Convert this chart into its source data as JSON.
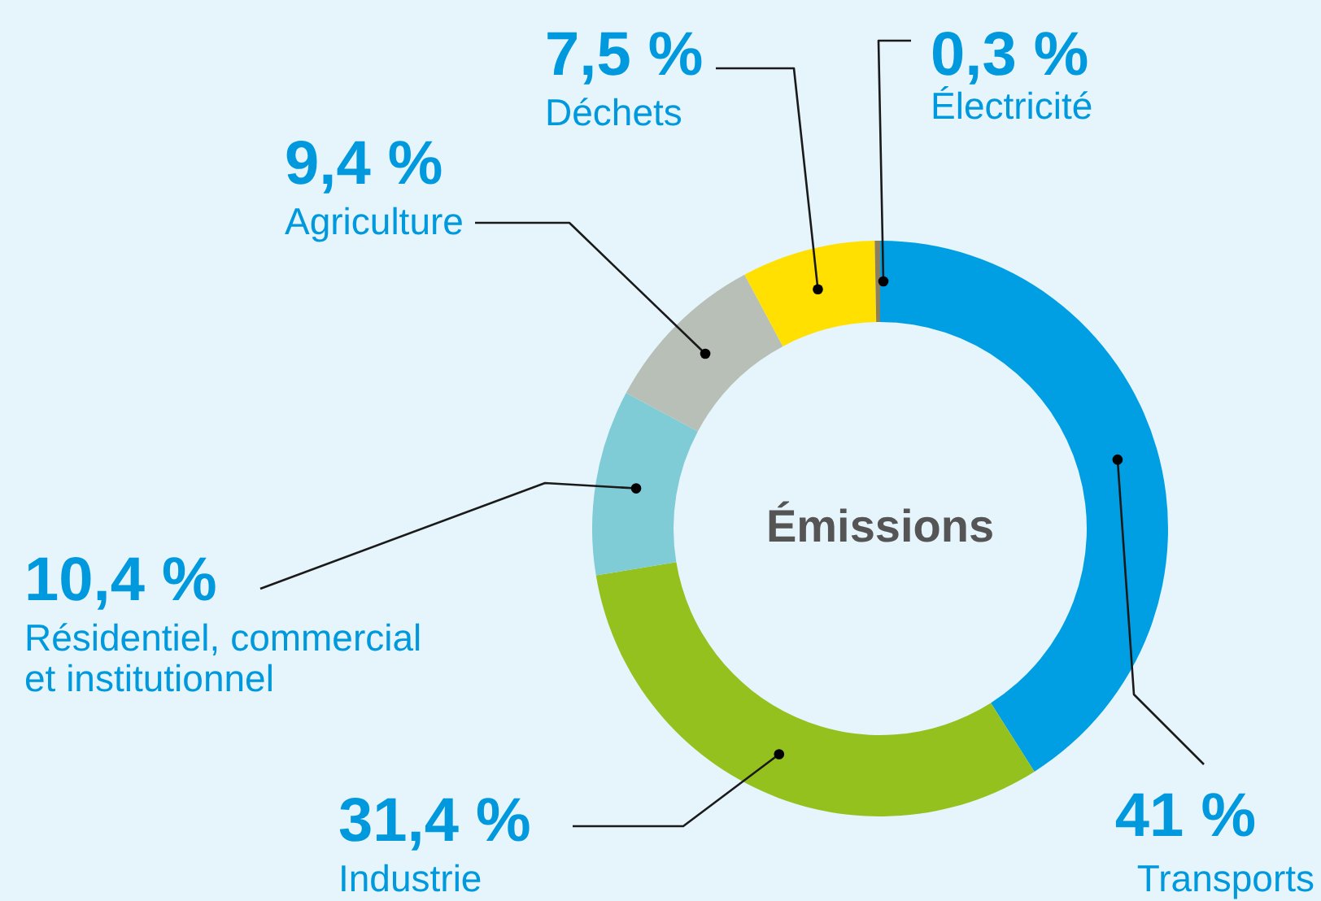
{
  "chart_data": {
    "type": "donut",
    "title": "Émissions",
    "categories": [
      "Transports",
      "Industrie",
      "Résidentiel, commercial et institutionnel",
      "Agriculture",
      "Déchets",
      "Électricité"
    ],
    "values": [
      41,
      31.4,
      10.4,
      9.4,
      7.5,
      0.3
    ],
    "value_labels": [
      "41 %",
      "31,4 %",
      "10,4 %",
      "9,4 %",
      "7,5 %",
      "0,3 %"
    ],
    "colors": [
      "#009fe3",
      "#95c11f",
      "#7fcbd6",
      "#b8bfb6",
      "#ffe000",
      "#8c7f5a"
    ]
  }
}
